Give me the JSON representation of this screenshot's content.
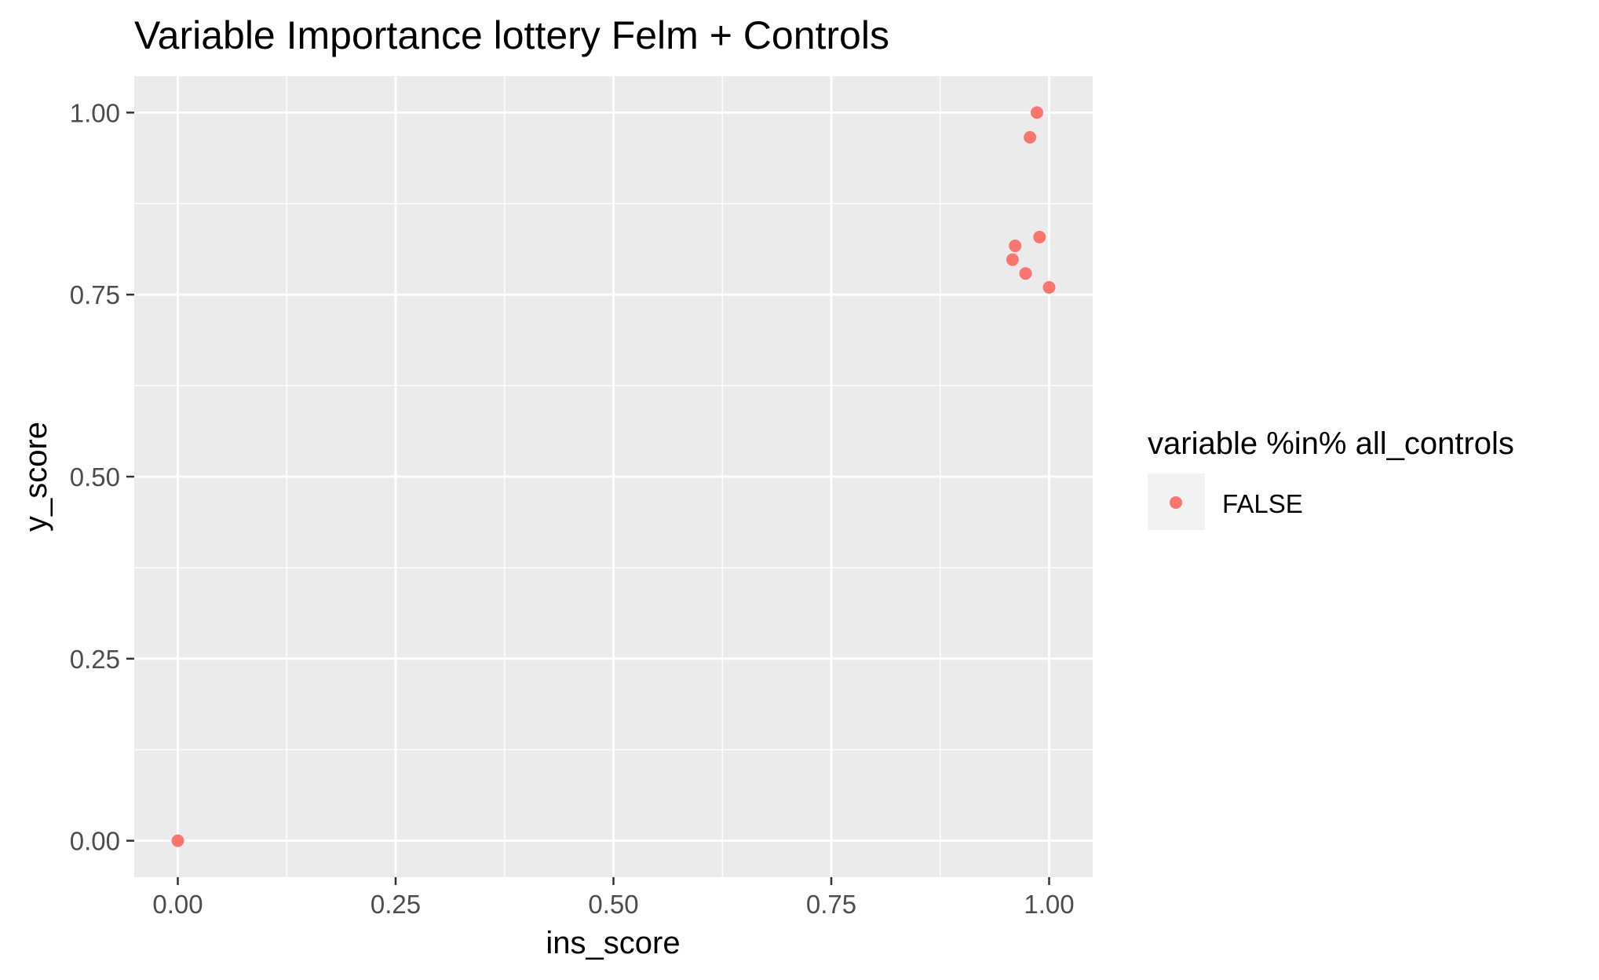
{
  "chart_data": {
    "type": "scatter",
    "title": "Variable Importance lottery Felm + Controls",
    "xlabel": "ins_score",
    "ylabel": "y_score",
    "xlim": [
      -0.05,
      1.05
    ],
    "ylim": [
      -0.05,
      1.05
    ],
    "xticks": [
      0.0,
      0.25,
      0.5,
      0.75,
      1.0
    ],
    "xtick_labels": [
      "0.00",
      "0.25",
      "0.50",
      "0.75",
      "1.00"
    ],
    "yticks": [
      0.0,
      0.25,
      0.5,
      0.75,
      1.0
    ],
    "ytick_labels": [
      "0.00",
      "0.25",
      "0.50",
      "0.75",
      "1.00"
    ],
    "grid": true,
    "legend": {
      "title": "variable %in% all_controls",
      "placement": "right",
      "entries": [
        {
          "label": "FALSE",
          "color": "#F8766D"
        }
      ]
    },
    "series": [
      {
        "label": "FALSE",
        "color": "#F8766D",
        "points": [
          {
            "x": 0.0,
            "y": 0.0
          },
          {
            "x": 0.986,
            "y": 1.0
          },
          {
            "x": 0.978,
            "y": 0.966
          },
          {
            "x": 0.989,
            "y": 0.829
          },
          {
            "x": 0.961,
            "y": 0.817
          },
          {
            "x": 0.958,
            "y": 0.798
          },
          {
            "x": 0.973,
            "y": 0.779
          },
          {
            "x": 1.0,
            "y": 0.76
          }
        ]
      }
    ],
    "colors": {
      "panel": "#EBEBEB",
      "grid": "#FFFFFF",
      "tick_text": "#4D4D4D",
      "tick_mark": "#333333",
      "text": "#000000",
      "legend_key": "#F2F2F2"
    }
  }
}
